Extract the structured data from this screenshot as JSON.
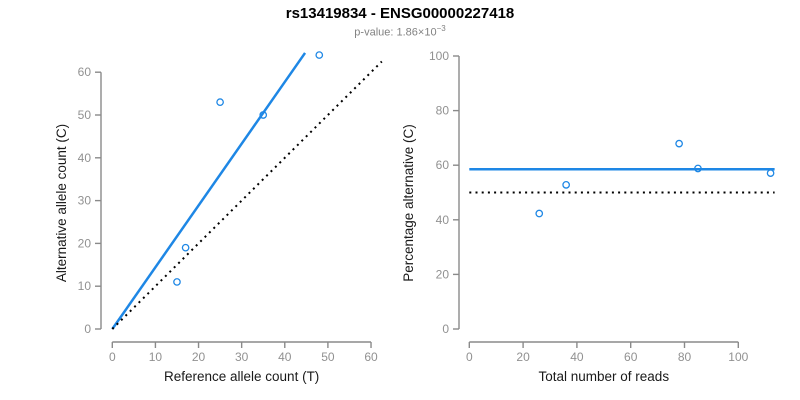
{
  "figure": {
    "title": "rs13419834 - ENSG00000227418",
    "pvalue_prefix": "p-value: 1.86×10",
    "pvalue_exponent": "−3"
  },
  "colors": {
    "accent_blue": "#1E87E5",
    "line_black": "#000000",
    "axis_gray": "#8A8A8A",
    "tick_label_gray": "#919191",
    "axis_title_black": "#1a1a1a"
  },
  "chart_data": [
    {
      "type": "scatter",
      "panel": "left",
      "xlabel": "Reference allele count (T)",
      "ylabel": "Alternative allele count (C)",
      "xlim": [
        0,
        63
      ],
      "ylim": [
        0,
        66
      ],
      "xticks": [
        0,
        10,
        20,
        30,
        40,
        50,
        60
      ],
      "yticks": [
        0,
        10,
        20,
        30,
        40,
        50,
        60
      ],
      "grid": false,
      "legend": "none",
      "points": [
        [
          15,
          11
        ],
        [
          17,
          19
        ],
        [
          25,
          53
        ],
        [
          35,
          50
        ],
        [
          48,
          64
        ]
      ],
      "lines": [
        {
          "name": "regression-line",
          "style": "solid",
          "color": "blue",
          "x1": 0,
          "y1": 0,
          "x2": 44.7,
          "y2": 64.5
        },
        {
          "name": "identity-line",
          "style": "dotted",
          "color": "black",
          "x1": 0,
          "y1": 0,
          "x2": 62.5,
          "y2": 62.5
        }
      ]
    },
    {
      "type": "scatter",
      "panel": "right",
      "xlabel": "Total number of reads",
      "ylabel": "Percentage alternative (C)",
      "xlim": [
        0,
        114
      ],
      "ylim": [
        0,
        100
      ],
      "xticks": [
        0,
        20,
        40,
        60,
        80,
        100
      ],
      "yticks": [
        0,
        20,
        40,
        60,
        80,
        100
      ],
      "grid": false,
      "legend": "none",
      "points": [
        [
          26,
          42.3
        ],
        [
          36,
          52.8
        ],
        [
          78,
          67.9
        ],
        [
          85,
          58.8
        ],
        [
          112,
          57.1
        ]
      ],
      "lines": [
        {
          "name": "mean-percentage-line",
          "style": "solid",
          "color": "blue",
          "x1": 0,
          "y1": 58.5,
          "x2": 113.5,
          "y2": 58.5
        },
        {
          "name": "null-50-percent-line",
          "style": "dotted",
          "color": "black",
          "x1": 0,
          "y1": 50,
          "x2": 113.5,
          "y2": 50
        }
      ]
    }
  ]
}
